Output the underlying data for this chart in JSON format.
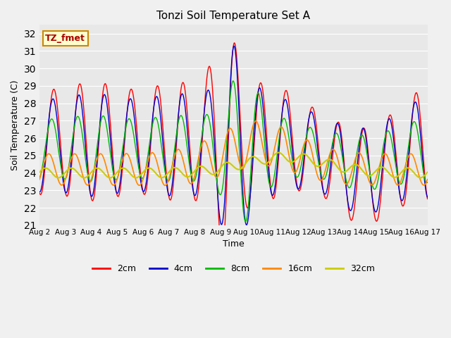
{
  "title": "Tonzi Soil Temperature Set A",
  "xlabel": "Time",
  "ylabel": "Soil Temperature (C)",
  "ylim": [
    21.0,
    32.5
  ],
  "yticks": [
    21.0,
    22.0,
    23.0,
    24.0,
    25.0,
    26.0,
    27.0,
    28.0,
    29.0,
    30.0,
    31.0,
    32.0
  ],
  "annotation": "TZ_fmet",
  "fig_bg": "#f0f0f0",
  "plot_bg": "#e8e8e8",
  "grid_color": "#ffffff",
  "line_colors": {
    "2cm": "#ff0000",
    "4cm": "#0000cc",
    "8cm": "#00bb00",
    "16cm": "#ff8800",
    "32cm": "#cccc00"
  },
  "legend_labels": [
    "2cm",
    "4cm",
    "8cm",
    "16cm",
    "32cm"
  ],
  "num_points": 720
}
